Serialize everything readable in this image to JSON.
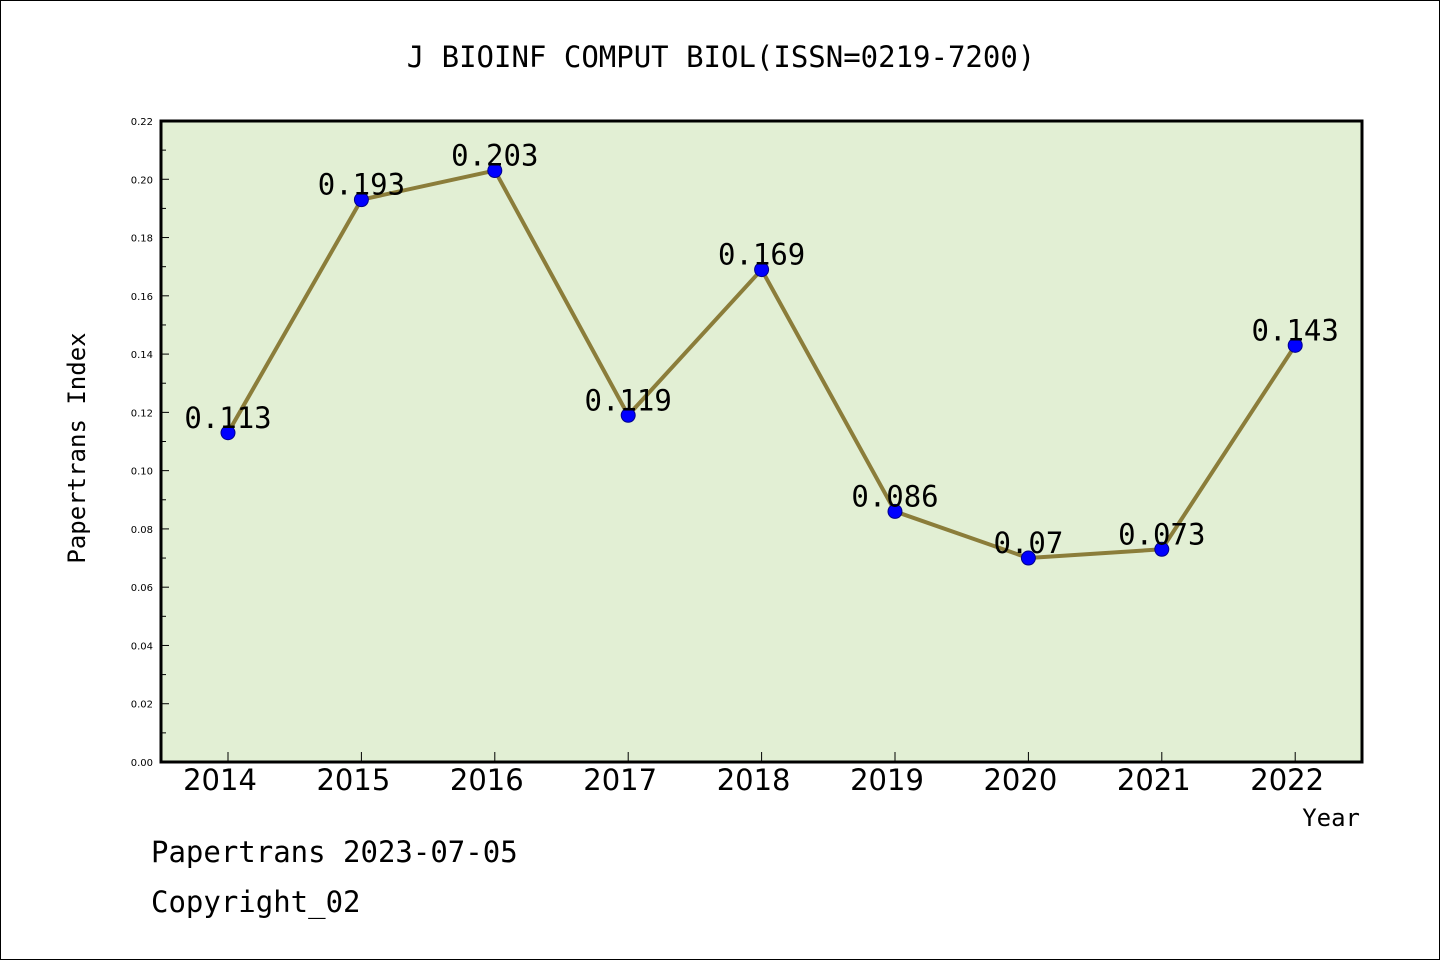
{
  "chart_data": {
    "type": "line",
    "title": "J BIOINF COMPUT BIOL(ISSN=0219-7200)",
    "xlabel": "Year",
    "ylabel": "Papertrans Index",
    "categories": [
      "2014",
      "2015",
      "2016",
      "2017",
      "2018",
      "2019",
      "2020",
      "2021",
      "2022"
    ],
    "values": [
      0.113,
      0.193,
      0.203,
      0.119,
      0.169,
      0.086,
      0.07,
      0.073,
      0.143
    ],
    "data_labels": [
      "0.113",
      "0.193",
      "0.203",
      "0.119",
      "0.169",
      "0.086",
      "0.07",
      "0.073",
      "0.143"
    ],
    "ylim": [
      0,
      0.22
    ],
    "yticks": [
      "0.00",
      "0.02",
      "0.04",
      "0.06",
      "0.08",
      "0.10",
      "0.12",
      "0.14",
      "0.16",
      "0.18",
      "0.20",
      "0.22"
    ],
    "grid": false,
    "colors": {
      "plot_background": "#e2efd4",
      "line": "#8b7d3a",
      "marker": "#0000ff"
    }
  },
  "footer": {
    "line1": "Papertrans 2023-07-05",
    "line2": "Copyright_02"
  }
}
